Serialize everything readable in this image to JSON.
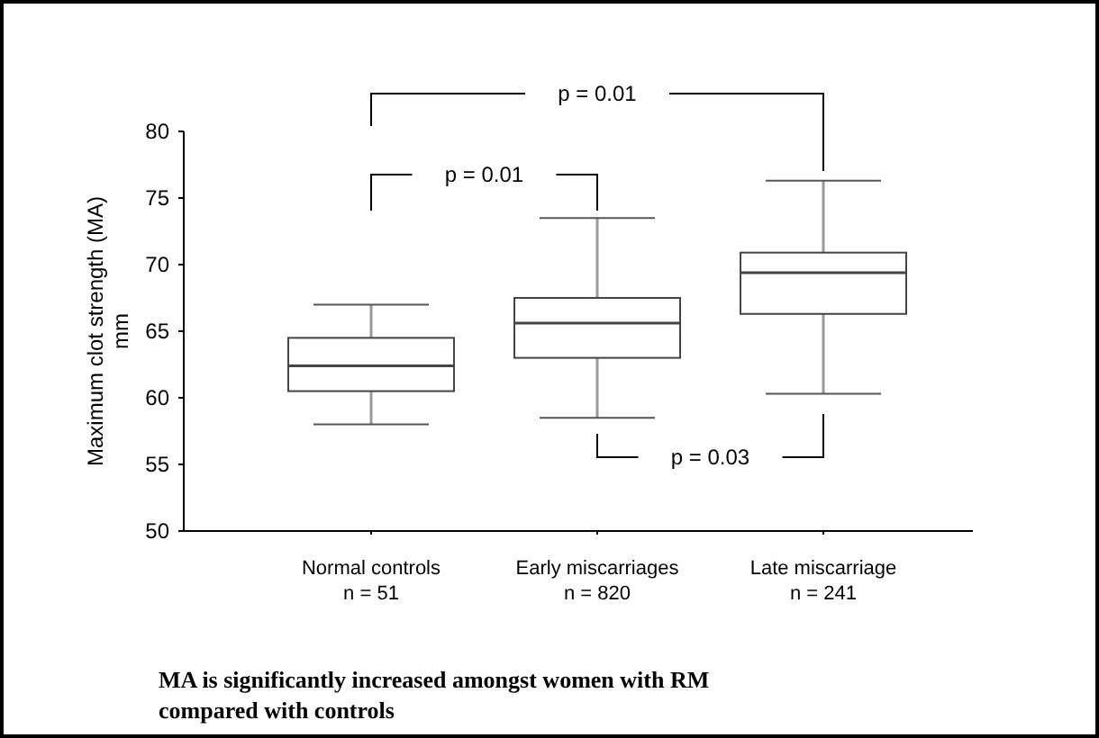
{
  "chart_data": {
    "type": "box",
    "title": "MA is significantly increased amongst women with RM compared with controls",
    "ylabel": "Maximum clot strength (MA)\nmm",
    "categories": [
      "Normal controls\nn = 51",
      "Early miscarriages\nn = 820",
      "Late miscarriage\nn = 241"
    ],
    "boxes": [
      {
        "low": 58,
        "q1": 60.5,
        "median": 62.4,
        "q3": 64.5,
        "high": 67
      },
      {
        "low": 58.5,
        "q1": 63,
        "median": 65.6,
        "q3": 67.5,
        "high": 73.5
      },
      {
        "low": 60.3,
        "q1": 66.3,
        "median": 69.4,
        "q3": 70.9,
        "high": 76.3
      }
    ],
    "ylim": [
      50,
      80
    ],
    "yticks": [
      50,
      55,
      60,
      65,
      70,
      75,
      80
    ],
    "grid": false,
    "annotations": [
      "p = 0.01",
      "p = 0.01",
      "p = 0.03"
    ]
  }
}
